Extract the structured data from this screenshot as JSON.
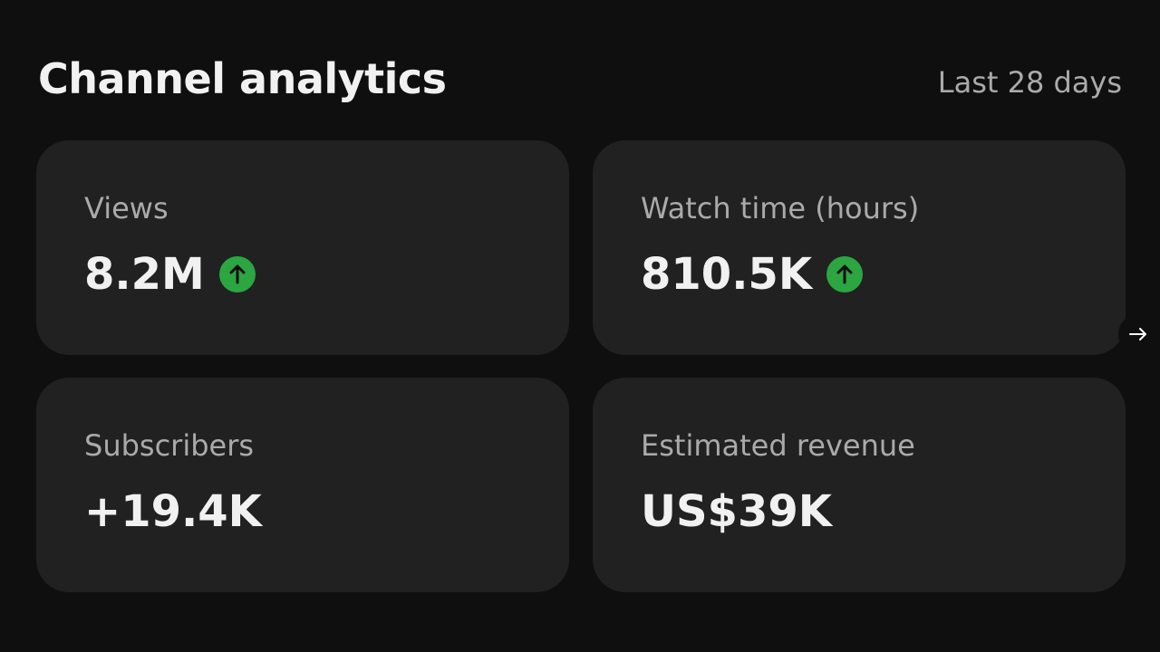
{
  "header": {
    "title": "Channel analytics",
    "period": "Last 28 days"
  },
  "cards": [
    {
      "label": "Views",
      "value": "8.2M"
    },
    {
      "label": "Watch time (hours)",
      "value": "810.5K"
    },
    {
      "label": "Subscribers",
      "value": "+19.4K"
    },
    {
      "label": "Estimated revenue",
      "value": "US$39K"
    }
  ]
}
